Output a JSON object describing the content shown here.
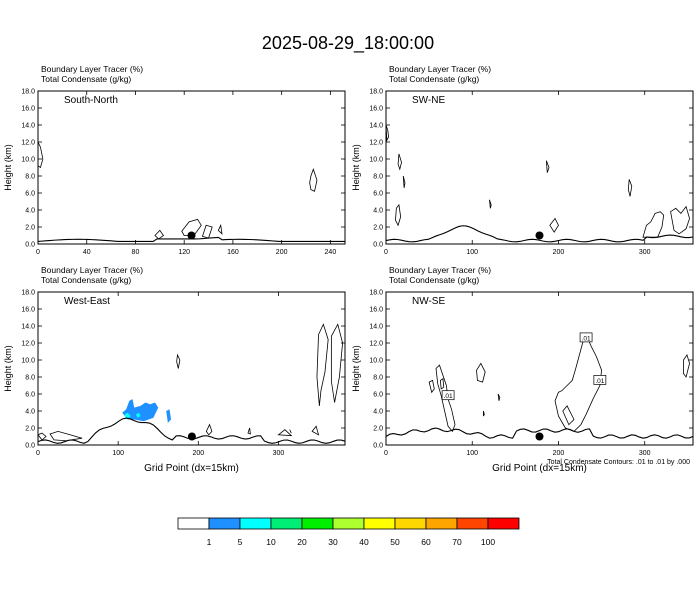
{
  "title": "2025-08-29_18:00:00",
  "footnote": "Total Condensate Contours: .01 to .01 by .000",
  "colorbar": {
    "labels": [
      "1",
      "5",
      "10",
      "20",
      "30",
      "40",
      "50",
      "60",
      "70",
      "100"
    ],
    "colors": [
      "#ffffff",
      "#1e90ff",
      "#00ffff",
      "#00ee76",
      "#00ee00",
      "#adff2f",
      "#ffff00",
      "#ffd700",
      "#ffa500",
      "#ff4500",
      "#ff0000"
    ]
  },
  "chart_data": [
    {
      "type": "contour",
      "panel_title": "South-North",
      "header_lines": [
        "Boundary Layer Tracer   (%)",
        "Total Condensate   (g/kg)"
      ],
      "ylabel": "Height (km)",
      "xlabel": "",
      "xlim": [
        0,
        252
      ],
      "ylim": [
        0,
        18
      ],
      "x_ticks": [
        0,
        40,
        80,
        120,
        160,
        200,
        240
      ],
      "y_ticks": [
        "0.0",
        "2.0",
        "4.0",
        "6.0",
        "8.0",
        "10.0",
        "12.0",
        "14.0",
        "16.0",
        "18.0"
      ],
      "marker_x": 126,
      "marker_y": 1.0,
      "contour_labels": []
    },
    {
      "type": "contour",
      "panel_title": "SW-NE",
      "header_lines": [
        "Boundary Layer Tracer   (%)",
        "Total Condensate   (g/kg)"
      ],
      "ylabel": "Height (km)",
      "xlabel": "",
      "xlim": [
        0,
        356
      ],
      "ylim": [
        0,
        18
      ],
      "x_ticks": [
        0,
        100,
        200,
        300
      ],
      "y_ticks": [
        "0.0",
        "2.0",
        "4.0",
        "6.0",
        "8.0",
        "10.0",
        "12.0",
        "14.0",
        "16.0",
        "18.0"
      ],
      "marker_x": 178,
      "marker_y": 1.0,
      "contour_labels": []
    },
    {
      "type": "contour",
      "panel_title": "West-East",
      "header_lines": [
        "Boundary Layer Tracer   (%)",
        "Total Condensate   (g/kg)"
      ],
      "ylabel": "Height (km)",
      "xlabel": "Grid Point (dx=15km)",
      "xlim": [
        0,
        383
      ],
      "ylim": [
        0,
        18
      ],
      "x_ticks": [
        0,
        100,
        200,
        300
      ],
      "y_ticks": [
        "0.0",
        "2.0",
        "4.0",
        "6.0",
        "8.0",
        "10.0",
        "12.0",
        "14.0",
        "16.0",
        "18.0"
      ],
      "marker_x": 192,
      "marker_y": 1.0,
      "contour_labels": []
    },
    {
      "type": "contour",
      "panel_title": "NW-SE",
      "header_lines": [
        "Boundary Layer Tracer   (%)",
        "Total Condensate   (g/kg)"
      ],
      "ylabel": "Height (km)",
      "xlabel": "Grid Point (dx=15km)",
      "xlim": [
        0,
        356
      ],
      "ylim": [
        0,
        18
      ],
      "x_ticks": [
        0,
        100,
        200,
        300
      ],
      "y_ticks": [
        "0.0",
        "2.0",
        "4.0",
        "6.0",
        "8.0",
        "10.0",
        "12.0",
        "14.0",
        "16.0",
        "18.0"
      ],
      "marker_x": 178,
      "marker_y": 1.0,
      "contour_labels": [
        ".01",
        ".01",
        ".01"
      ]
    }
  ]
}
